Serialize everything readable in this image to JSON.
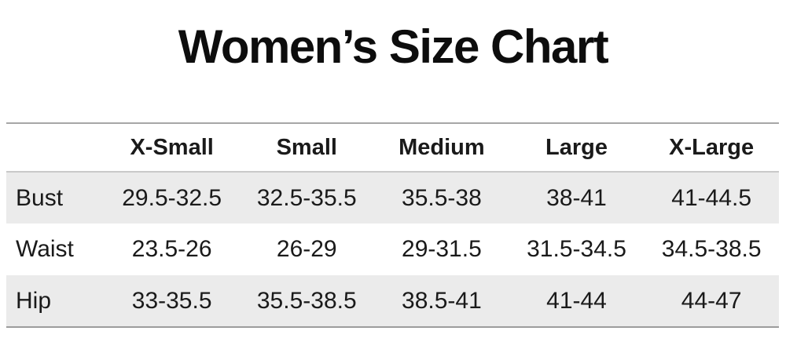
{
  "title": "Women’s Size Chart",
  "table": {
    "corner_label": "",
    "columns": [
      "X-Small",
      "Small",
      "Medium",
      "Large",
      "X-Large"
    ],
    "rows": [
      {
        "label": "Bust",
        "values": [
          "29.5-32.5",
          "32.5-35.5",
          "35.5-38",
          "38-41",
          "41-44.5"
        ]
      },
      {
        "label": "Waist",
        "values": [
          "23.5-26",
          "26-29",
          "29-31.5",
          "31.5-34.5",
          "34.5-38.5"
        ]
      },
      {
        "label": "Hip",
        "values": [
          "33-35.5",
          "35.5-38.5",
          "38.5-41",
          "41-44",
          "44-47"
        ]
      }
    ],
    "colors": {
      "band": "#ebebeb",
      "top_border": "#a6a6a6",
      "header_border": "#c9c9c9",
      "bottom_border": "#9c9c9c",
      "text": "#1a1a1a"
    }
  }
}
